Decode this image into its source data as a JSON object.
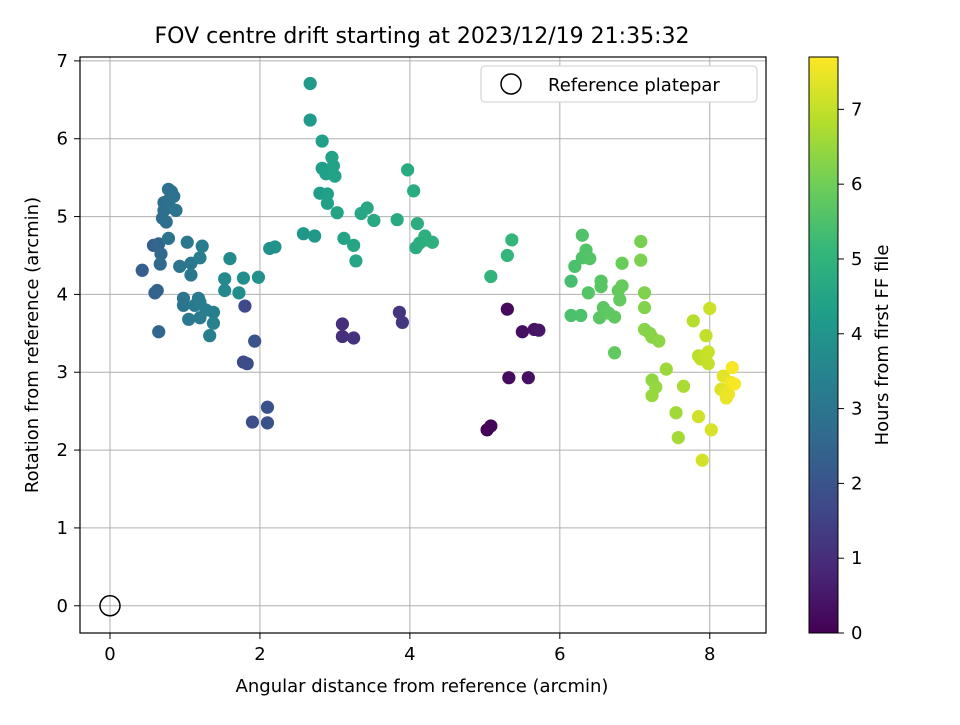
{
  "chart_data": {
    "type": "scatter",
    "title": "FOV centre drift starting at 2023/12/19 21:35:32",
    "xlabel": "Angular distance from reference (arcmin)",
    "ylabel": "Rotation from reference (arcmin)",
    "xlim": [
      -0.4,
      8.75
    ],
    "ylim": [
      -0.35,
      7.05
    ],
    "xticks": [
      0,
      2,
      4,
      6,
      8
    ],
    "yticks": [
      0,
      1,
      2,
      3,
      4,
      5,
      6,
      7
    ],
    "grid": true,
    "legend": {
      "position": "upper right",
      "entries": [
        "Reference platepar"
      ]
    },
    "reference_point": {
      "label": "Reference platepar",
      "x": 0,
      "y": 0
    },
    "colorbar": {
      "label": "Hours from first FF file",
      "colormap": "viridis",
      "range": [
        0,
        7.7
      ],
      "ticks": [
        0,
        1,
        2,
        3,
        4,
        5,
        6,
        7
      ]
    },
    "colormap_stops": [
      "#440154",
      "#482878",
      "#3e4a89",
      "#31688e",
      "#26828e",
      "#1f9e89",
      "#35b779",
      "#6ece58",
      "#b5de2b",
      "#fde725"
    ],
    "points": [
      [
        5.03,
        2.26,
        0.05
      ],
      [
        5.08,
        2.31,
        0.1
      ],
      [
        5.3,
        3.81,
        0.2
      ],
      [
        5.32,
        2.93,
        0.25
      ],
      [
        5.5,
        3.52,
        0.3
      ],
      [
        5.58,
        2.93,
        0.35
      ],
      [
        5.66,
        3.55,
        0.4
      ],
      [
        5.72,
        3.54,
        0.45
      ],
      [
        3.1,
        3.62,
        1.0
      ],
      [
        3.1,
        3.46,
        1.05
      ],
      [
        3.25,
        3.44,
        1.1
      ],
      [
        3.86,
        3.77,
        1.15
      ],
      [
        3.9,
        3.64,
        1.2
      ],
      [
        1.8,
        3.85,
        1.7
      ],
      [
        1.78,
        3.13,
        1.75
      ],
      [
        1.83,
        3.11,
        1.8
      ],
      [
        1.9,
        2.36,
        1.85
      ],
      [
        2.1,
        2.55,
        1.9
      ],
      [
        2.1,
        2.35,
        1.95
      ],
      [
        1.93,
        3.4,
        1.97
      ],
      [
        0.43,
        4.31,
        2.3
      ],
      [
        0.58,
        4.63,
        2.35
      ],
      [
        0.6,
        4.02,
        2.4
      ],
      [
        0.63,
        4.05,
        2.45
      ],
      [
        0.65,
        4.65,
        2.5
      ],
      [
        0.65,
        3.52,
        2.55
      ],
      [
        0.68,
        4.52,
        2.6
      ],
      [
        0.67,
        4.39,
        2.65
      ],
      [
        0.7,
        4.98,
        2.7
      ],
      [
        0.72,
        5.18,
        2.72
      ],
      [
        0.72,
        5.08,
        2.75
      ],
      [
        0.75,
        4.93,
        2.78
      ],
      [
        0.77,
        5.2,
        2.8
      ],
      [
        0.78,
        5.35,
        2.82
      ],
      [
        0.8,
        5.12,
        2.85
      ],
      [
        0.82,
        5.32,
        2.87
      ],
      [
        0.85,
        5.26,
        2.9
      ],
      [
        0.88,
        5.08,
        2.92
      ],
      [
        0.78,
        4.72,
        2.95
      ],
      [
        0.93,
        4.36,
        2.98
      ],
      [
        0.98,
        3.95,
        3.0
      ],
      [
        0.98,
        3.86,
        3.02
      ],
      [
        1.03,
        4.67,
        3.05
      ],
      [
        1.08,
        4.4,
        3.07
      ],
      [
        1.08,
        4.25,
        3.1
      ],
      [
        1.05,
        3.68,
        3.12
      ],
      [
        1.13,
        3.86,
        3.15
      ],
      [
        1.18,
        3.95,
        3.17
      ],
      [
        1.2,
        3.9,
        3.2
      ],
      [
        1.2,
        3.7,
        3.22
      ],
      [
        1.23,
        4.62,
        3.25
      ],
      [
        1.2,
        4.47,
        3.27
      ],
      [
        1.28,
        3.8,
        3.3
      ],
      [
        1.33,
        3.47,
        3.33
      ],
      [
        1.38,
        3.77,
        3.35
      ],
      [
        1.38,
        3.63,
        3.38
      ],
      [
        1.53,
        4.05,
        3.6
      ],
      [
        1.53,
        4.2,
        3.65
      ],
      [
        1.6,
        4.46,
        3.7
      ],
      [
        1.72,
        4.02,
        3.75
      ],
      [
        1.78,
        4.21,
        3.8
      ],
      [
        1.98,
        4.22,
        3.85
      ],
      [
        2.13,
        4.59,
        3.9
      ],
      [
        2.2,
        4.61,
        3.95
      ],
      [
        2.58,
        4.78,
        4.05
      ],
      [
        2.73,
        4.75,
        4.1
      ],
      [
        2.67,
        6.24,
        4.15
      ],
      [
        2.67,
        6.71,
        4.2
      ],
      [
        2.8,
        5.3,
        4.25
      ],
      [
        2.83,
        5.62,
        4.28
      ],
      [
        2.83,
        5.97,
        4.3
      ],
      [
        2.88,
        5.55,
        4.33
      ],
      [
        2.9,
        5.29,
        4.35
      ],
      [
        2.9,
        5.17,
        4.38
      ],
      [
        2.96,
        5.76,
        4.4
      ],
      [
        2.98,
        5.65,
        4.42
      ],
      [
        3.0,
        5.52,
        4.45
      ],
      [
        3.03,
        5.05,
        4.47
      ],
      [
        3.12,
        4.72,
        4.5
      ],
      [
        3.25,
        4.63,
        4.52
      ],
      [
        3.28,
        4.43,
        4.55
      ],
      [
        3.35,
        5.04,
        4.57
      ],
      [
        3.43,
        5.11,
        4.6
      ],
      [
        3.52,
        4.95,
        4.62
      ],
      [
        3.83,
        4.96,
        4.67
      ],
      [
        3.97,
        5.6,
        4.7
      ],
      [
        4.05,
        5.33,
        4.72
      ],
      [
        4.08,
        4.6,
        4.75
      ],
      [
        4.1,
        4.91,
        4.77
      ],
      [
        4.13,
        4.66,
        4.8
      ],
      [
        4.22,
        4.7,
        4.82
      ],
      [
        4.2,
        4.75,
        4.85
      ],
      [
        4.3,
        4.67,
        4.87
      ],
      [
        5.08,
        4.23,
        5.0
      ],
      [
        5.3,
        4.5,
        5.05
      ],
      [
        5.36,
        4.7,
        5.1
      ],
      [
        6.15,
        4.17,
        5.4
      ],
      [
        6.2,
        4.36,
        5.45
      ],
      [
        6.15,
        3.73,
        5.48
      ],
      [
        6.28,
        3.73,
        5.5
      ],
      [
        6.3,
        4.47,
        5.52
      ],
      [
        6.3,
        4.76,
        5.55
      ],
      [
        6.35,
        4.57,
        5.58
      ],
      [
        6.4,
        4.46,
        5.6
      ],
      [
        6.38,
        4.02,
        5.62
      ],
      [
        6.55,
        4.17,
        5.65
      ],
      [
        6.55,
        4.1,
        5.68
      ],
      [
        6.53,
        3.7,
        5.7
      ],
      [
        6.58,
        3.83,
        5.72
      ],
      [
        6.65,
        3.76,
        5.75
      ],
      [
        6.73,
        3.71,
        5.78
      ],
      [
        6.73,
        3.25,
        5.8
      ],
      [
        6.78,
        4.05,
        5.82
      ],
      [
        6.8,
        3.93,
        5.85
      ],
      [
        6.83,
        4.11,
        5.88
      ],
      [
        6.83,
        4.4,
        5.9
      ],
      [
        7.08,
        4.68,
        6.1
      ],
      [
        7.08,
        4.44,
        6.15
      ],
      [
        7.13,
        4.02,
        6.2
      ],
      [
        7.13,
        3.83,
        6.22
      ],
      [
        7.13,
        3.55,
        6.25
      ],
      [
        7.2,
        3.5,
        6.28
      ],
      [
        7.23,
        3.45,
        6.3
      ],
      [
        7.32,
        3.4,
        6.35
      ],
      [
        7.23,
        2.9,
        6.4
      ],
      [
        7.28,
        2.81,
        6.45
      ],
      [
        7.23,
        2.7,
        6.5
      ],
      [
        7.42,
        3.04,
        6.55
      ],
      [
        7.55,
        2.48,
        6.6
      ],
      [
        7.58,
        2.16,
        6.65
      ],
      [
        7.65,
        2.82,
        6.7
      ],
      [
        7.78,
        3.66,
        6.85
      ],
      [
        7.85,
        3.21,
        6.9
      ],
      [
        7.88,
        3.17,
        6.95
      ],
      [
        7.95,
        3.47,
        7.0
      ],
      [
        7.95,
        3.21,
        7.02
      ],
      [
        7.98,
        3.11,
        7.05
      ],
      [
        7.98,
        3.26,
        7.08
      ],
      [
        8.0,
        3.82,
        7.1
      ],
      [
        7.85,
        2.43,
        7.15
      ],
      [
        7.9,
        1.87,
        7.2
      ],
      [
        8.02,
        2.26,
        7.25
      ],
      [
        8.15,
        2.78,
        7.3
      ],
      [
        8.18,
        2.95,
        7.35
      ],
      [
        8.2,
        2.75,
        7.4
      ],
      [
        8.22,
        2.67,
        7.45
      ],
      [
        8.25,
        2.72,
        7.5
      ],
      [
        8.28,
        2.87,
        7.55
      ],
      [
        8.3,
        3.06,
        7.6
      ],
      [
        8.33,
        2.85,
        7.65
      ]
    ]
  }
}
